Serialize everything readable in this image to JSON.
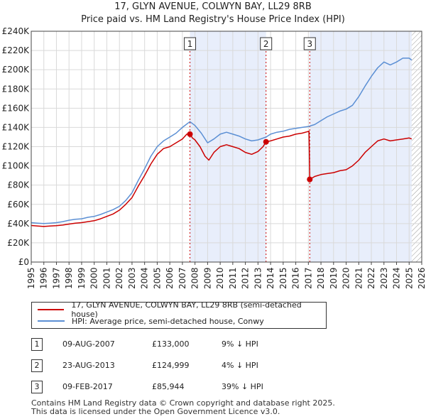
{
  "chart_data": {
    "type": "line",
    "title": "17, GLYN AVENUE, COLWYN BAY, LL29 8RB",
    "subtitle": "Price paid vs. HM Land Registry's House Price Index (HPI)",
    "xlim": [
      1995,
      2026
    ],
    "ylim": [
      0,
      240000
    ],
    "x_ticks": [
      1995,
      1996,
      1997,
      1998,
      1999,
      2000,
      2001,
      2002,
      2003,
      2004,
      2005,
      2006,
      2007,
      2008,
      2009,
      2010,
      2011,
      2012,
      2013,
      2014,
      2015,
      2016,
      2017,
      2018,
      2019,
      2020,
      2021,
      2022,
      2023,
      2024,
      2025,
      2026
    ],
    "y_ticks": [
      {
        "value": 0,
        "label": "£0"
      },
      {
        "value": 20000,
        "label": "£20K"
      },
      {
        "value": 40000,
        "label": "£40K"
      },
      {
        "value": 60000,
        "label": "£60K"
      },
      {
        "value": 80000,
        "label": "£80K"
      },
      {
        "value": 100000,
        "label": "£100K"
      },
      {
        "value": 120000,
        "label": "£120K"
      },
      {
        "value": 140000,
        "label": "£140K"
      },
      {
        "value": 160000,
        "label": "£160K"
      },
      {
        "value": 180000,
        "label": "£180K"
      },
      {
        "value": 200000,
        "label": "£200K"
      },
      {
        "value": 220000,
        "label": "£220K"
      },
      {
        "value": 240000,
        "label": "£240K"
      }
    ],
    "grid": true,
    "shaded_regions": [
      [
        2007.6,
        2013.64
      ],
      [
        2017.11,
        2025.2
      ]
    ],
    "hatched_region": [
      2025.2,
      2026
    ],
    "series": [
      {
        "name": "17, GLYN AVENUE, COLWYN BAY, LL29 8RB (semi-detached house)",
        "color": "#cc0000",
        "points": [
          [
            1995.0,
            38000
          ],
          [
            1995.5,
            37500
          ],
          [
            1996.0,
            37000
          ],
          [
            1996.5,
            37500
          ],
          [
            1997.0,
            37800
          ],
          [
            1997.5,
            38500
          ],
          [
            1998.0,
            39500
          ],
          [
            1998.5,
            40500
          ],
          [
            1999.0,
            41000
          ],
          [
            1999.5,
            42000
          ],
          [
            2000.0,
            43000
          ],
          [
            2000.5,
            45000
          ],
          [
            2001.0,
            47500
          ],
          [
            2001.5,
            50000
          ],
          [
            2002.0,
            54000
          ],
          [
            2002.5,
            60000
          ],
          [
            2003.0,
            67000
          ],
          [
            2003.5,
            79000
          ],
          [
            2004.0,
            90000
          ],
          [
            2004.5,
            102000
          ],
          [
            2005.0,
            112000
          ],
          [
            2005.5,
            118000
          ],
          [
            2006.0,
            120000
          ],
          [
            2006.5,
            124000
          ],
          [
            2007.0,
            128000
          ],
          [
            2007.35,
            133000
          ],
          [
            2007.6,
            133000
          ],
          [
            2007.8,
            129000
          ],
          [
            2008.0,
            127000
          ],
          [
            2008.4,
            120000
          ],
          [
            2008.8,
            110000
          ],
          [
            2009.1,
            106000
          ],
          [
            2009.5,
            114000
          ],
          [
            2010.0,
            120000
          ],
          [
            2010.5,
            122000
          ],
          [
            2011.0,
            120000
          ],
          [
            2011.5,
            118000
          ],
          [
            2012.0,
            114000
          ],
          [
            2012.5,
            112000
          ],
          [
            2013.0,
            115000
          ],
          [
            2013.4,
            120000
          ],
          [
            2013.64,
            124999
          ],
          [
            2014.0,
            126000
          ],
          [
            2014.5,
            128000
          ],
          [
            2015.0,
            130000
          ],
          [
            2015.5,
            131000
          ],
          [
            2016.0,
            133000
          ],
          [
            2016.5,
            134000
          ],
          [
            2017.05,
            136000
          ],
          [
            2017.11,
            85944
          ],
          [
            2017.5,
            89000
          ],
          [
            2018.0,
            91000
          ],
          [
            2018.5,
            92000
          ],
          [
            2019.0,
            93000
          ],
          [
            2019.5,
            95000
          ],
          [
            2020.0,
            96000
          ],
          [
            2020.5,
            100000
          ],
          [
            2021.0,
            106000
          ],
          [
            2021.5,
            114000
          ],
          [
            2022.0,
            120000
          ],
          [
            2022.5,
            126000
          ],
          [
            2023.0,
            128000
          ],
          [
            2023.5,
            126000
          ],
          [
            2024.0,
            127000
          ],
          [
            2024.5,
            128000
          ],
          [
            2025.0,
            129000
          ],
          [
            2025.2,
            128000
          ]
        ]
      },
      {
        "name": "HPI: Average price, semi-detached house, Conwy",
        "color": "#5b8fd4",
        "points": [
          [
            1995.0,
            41000
          ],
          [
            1995.5,
            40500
          ],
          [
            1996.0,
            40000
          ],
          [
            1996.5,
            40500
          ],
          [
            1997.0,
            41000
          ],
          [
            1997.5,
            42000
          ],
          [
            1998.0,
            43500
          ],
          [
            1998.5,
            44500
          ],
          [
            1999.0,
            45000
          ],
          [
            1999.5,
            46500
          ],
          [
            2000.0,
            47500
          ],
          [
            2000.5,
            49500
          ],
          [
            2001.0,
            52000
          ],
          [
            2001.5,
            54500
          ],
          [
            2002.0,
            58000
          ],
          [
            2002.5,
            64000
          ],
          [
            2003.0,
            72000
          ],
          [
            2003.5,
            85000
          ],
          [
            2004.0,
            97000
          ],
          [
            2004.5,
            110000
          ],
          [
            2005.0,
            120000
          ],
          [
            2005.5,
            126000
          ],
          [
            2006.0,
            130000
          ],
          [
            2006.5,
            134000
          ],
          [
            2007.0,
            140000
          ],
          [
            2007.6,
            146000
          ],
          [
            2008.0,
            142000
          ],
          [
            2008.5,
            134000
          ],
          [
            2009.0,
            124000
          ],
          [
            2009.5,
            128000
          ],
          [
            2010.0,
            133000
          ],
          [
            2010.5,
            135000
          ],
          [
            2011.0,
            133000
          ],
          [
            2011.5,
            131000
          ],
          [
            2012.0,
            128000
          ],
          [
            2012.5,
            126000
          ],
          [
            2013.0,
            127000
          ],
          [
            2013.64,
            130000
          ],
          [
            2014.0,
            133000
          ],
          [
            2014.5,
            135000
          ],
          [
            2015.0,
            136000
          ],
          [
            2015.5,
            138000
          ],
          [
            2016.0,
            139000
          ],
          [
            2016.5,
            140000
          ],
          [
            2017.0,
            141000
          ],
          [
            2017.5,
            143000
          ],
          [
            2018.0,
            147000
          ],
          [
            2018.5,
            151000
          ],
          [
            2019.0,
            154000
          ],
          [
            2019.5,
            157000
          ],
          [
            2020.0,
            159000
          ],
          [
            2020.5,
            163000
          ],
          [
            2021.0,
            172000
          ],
          [
            2021.5,
            183000
          ],
          [
            2022.0,
            193000
          ],
          [
            2022.5,
            202000
          ],
          [
            2023.0,
            208000
          ],
          [
            2023.5,
            205000
          ],
          [
            2024.0,
            208000
          ],
          [
            2024.5,
            212000
          ],
          [
            2025.0,
            212000
          ],
          [
            2025.2,
            210000
          ]
        ]
      }
    ],
    "sales": [
      {
        "label": "1",
        "x": 2007.6,
        "price": 133000
      },
      {
        "label": "2",
        "x": 2013.64,
        "price": 124999
      },
      {
        "label": "3",
        "x": 2017.11,
        "price": 85944
      }
    ]
  },
  "legend": {
    "property": "17, GLYN AVENUE, COLWYN BAY, LL29 8RB (semi-detached house)",
    "hpi": "HPI: Average price, semi-detached house, Conwy"
  },
  "sales_table": [
    {
      "num": "1",
      "date": "09-AUG-2007",
      "price": "£133,000",
      "hpi": "9% ↓ HPI"
    },
    {
      "num": "2",
      "date": "23-AUG-2013",
      "price": "£124,999",
      "hpi": "4% ↓ HPI"
    },
    {
      "num": "3",
      "date": "09-FEB-2017",
      "price": "£85,944",
      "hpi": "39% ↓ HPI"
    }
  ],
  "footer": {
    "line1": "Contains HM Land Registry data © Crown copyright and database right 2025.",
    "line2": "This data is licensed under the Open Government Licence v3.0."
  },
  "colors": {
    "red": "#cc0000",
    "blue": "#5b8fd4",
    "shade": "#e8eefb"
  }
}
